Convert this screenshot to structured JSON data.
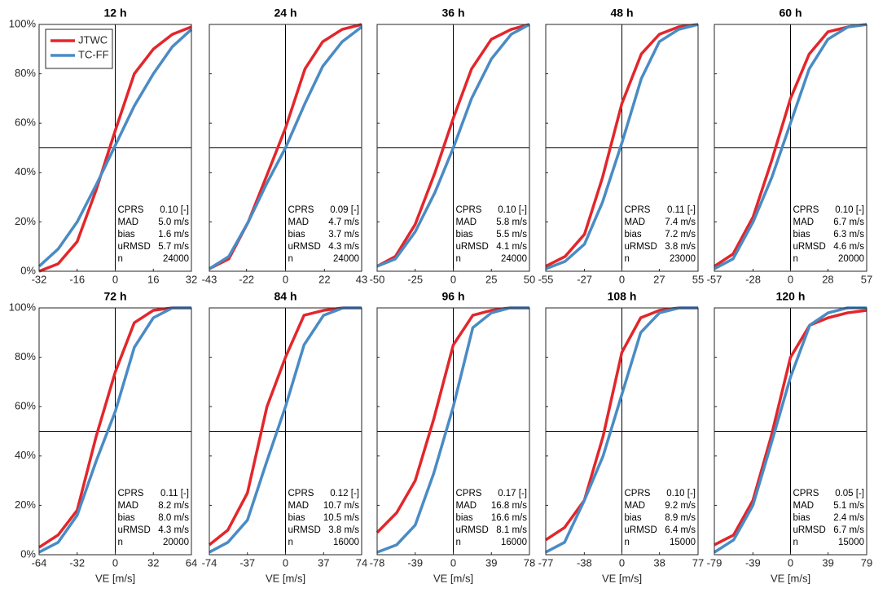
{
  "chart_data": [
    {
      "type": "line",
      "title": "12 h",
      "legend": "upper left",
      "x": [
        -32,
        -24,
        -16,
        -8,
        0,
        8,
        16,
        24,
        32
      ],
      "series": [
        {
          "name": "JTWC",
          "color": "#e3262b",
          "values": [
            0,
            3,
            12,
            33,
            57,
            80,
            90,
            96,
            99
          ]
        },
        {
          "name": "TC-FF",
          "color": "#4a8bc4",
          "values": [
            2,
            9,
            20,
            35,
            51,
            67,
            80,
            91,
            98
          ]
        }
      ],
      "xlim": [
        -32,
        32
      ],
      "xticks": [
        -32,
        -16,
        0,
        16,
        32
      ],
      "ylim": [
        0,
        100
      ],
      "yticks": [
        {
          "value": 0,
          "label": "0%"
        },
        {
          "value": 20,
          "label": "20%"
        },
        {
          "value": 40,
          "label": "40%"
        },
        {
          "value": 60,
          "label": "60%"
        },
        {
          "value": 80,
          "label": "80%"
        },
        {
          "value": 100,
          "label": "100%"
        }
      ],
      "ytick_labels": true,
      "reference_lines": {
        "x": 0,
        "y": 50
      },
      "stats": [
        {
          "label": "CPRS",
          "value": "0.10 [-]"
        },
        {
          "label": "MAD",
          "value": "5.0 m/s"
        },
        {
          "label": "bias",
          "value": "1.6 m/s"
        },
        {
          "label": "uRMSD",
          "value": "5.7 m/s"
        },
        {
          "label": "n",
          "value": "24000"
        }
      ]
    },
    {
      "type": "line",
      "title": "24 h",
      "x": [
        -43,
        -32,
        -21,
        -11,
        0,
        11,
        21,
        32,
        43
      ],
      "series": [
        {
          "color": "#e3262b",
          "values": [
            1,
            5,
            20,
            38,
            58,
            82,
            93,
            98,
            100
          ]
        },
        {
          "color": "#4a8bc4",
          "values": [
            1,
            6,
            20,
            35,
            50,
            68,
            83,
            93,
            99
          ]
        }
      ],
      "xlim": [
        -43,
        43
      ],
      "xticks": [
        -43,
        -22,
        0,
        22,
        43
      ],
      "ylim": [
        0,
        100
      ],
      "yticks": [
        0,
        20,
        40,
        60,
        80,
        100
      ],
      "ytick_labels": false,
      "reference_lines": {
        "x": 0,
        "y": 50
      },
      "stats": [
        {
          "label": "CPRS",
          "value": "0.09 [-]"
        },
        {
          "label": "MAD",
          "value": "4.7 m/s"
        },
        {
          "label": "bias",
          "value": "3.7 m/s"
        },
        {
          "label": "uRMSD",
          "value": "4.3 m/s"
        },
        {
          "label": "n",
          "value": "24000"
        }
      ]
    },
    {
      "type": "line",
      "title": "36 h",
      "x": [
        -50,
        -38,
        -25,
        -12,
        0,
        12,
        25,
        38,
        50
      ],
      "series": [
        {
          "color": "#e3262b",
          "values": [
            2,
            6,
            19,
            40,
            62,
            82,
            94,
            98,
            100
          ]
        },
        {
          "color": "#4a8bc4",
          "values": [
            2,
            5,
            16,
            32,
            50,
            70,
            86,
            96,
            100
          ]
        }
      ],
      "xlim": [
        -50,
        50
      ],
      "xticks": [
        -50,
        -25,
        0,
        25,
        50
      ],
      "ylim": [
        0,
        100
      ],
      "yticks": [
        0,
        20,
        40,
        60,
        80,
        100
      ],
      "ytick_labels": false,
      "reference_lines": {
        "x": 0,
        "y": 50
      },
      "stats": [
        {
          "label": "CPRS",
          "value": "0.10 [-]"
        },
        {
          "label": "MAD",
          "value": "5.8 m/s"
        },
        {
          "label": "bias",
          "value": "5.5 m/s"
        },
        {
          "label": "uRMSD",
          "value": "4.1 m/s"
        },
        {
          "label": "n",
          "value": "24000"
        }
      ]
    },
    {
      "type": "line",
      "title": "48 h",
      "x": [
        -55,
        -41,
        -27,
        -14,
        0,
        14,
        27,
        41,
        55
      ],
      "series": [
        {
          "color": "#e3262b",
          "values": [
            2,
            6,
            15,
            38,
            68,
            88,
            96,
            99,
            100
          ]
        },
        {
          "color": "#4a8bc4",
          "values": [
            1,
            4,
            11,
            28,
            52,
            78,
            93,
            98,
            100
          ]
        }
      ],
      "xlim": [
        -55,
        55
      ],
      "xticks": [
        -55,
        -27,
        0,
        27,
        55
      ],
      "ylim": [
        0,
        100
      ],
      "yticks": [
        0,
        20,
        40,
        60,
        80,
        100
      ],
      "ytick_labels": false,
      "reference_lines": {
        "x": 0,
        "y": 50
      },
      "stats": [
        {
          "label": "CPRS",
          "value": "0.11 [-]"
        },
        {
          "label": "MAD",
          "value": "7.4 m/s"
        },
        {
          "label": "bias",
          "value": "7.2 m/s"
        },
        {
          "label": "uRMSD",
          "value": "3.8 m/s"
        },
        {
          "label": "n",
          "value": "23000"
        }
      ]
    },
    {
      "type": "line",
      "title": "60 h",
      "x": [
        -57,
        -43,
        -28,
        -14,
        0,
        14,
        28,
        43,
        57
      ],
      "series": [
        {
          "color": "#e3262b",
          "values": [
            2,
            7,
            22,
            45,
            70,
            88,
            97,
            99,
            100
          ]
        },
        {
          "color": "#4a8bc4",
          "values": [
            1,
            5,
            20,
            38,
            60,
            82,
            94,
            99,
            100
          ]
        }
      ],
      "xlim": [
        -57,
        57
      ],
      "xticks": [
        -57,
        -28,
        0,
        28,
        57
      ],
      "ylim": [
        0,
        100
      ],
      "yticks": [
        0,
        20,
        40,
        60,
        80,
        100
      ],
      "ytick_labels": false,
      "reference_lines": {
        "x": 0,
        "y": 50
      },
      "stats": [
        {
          "label": "CPRS",
          "value": "0.10 [-]"
        },
        {
          "label": "MAD",
          "value": "6.7 m/s"
        },
        {
          "label": "bias",
          "value": "6.3 m/s"
        },
        {
          "label": "uRMSD",
          "value": "4.6 m/s"
        },
        {
          "label": "n",
          "value": "20000"
        }
      ]
    },
    {
      "type": "line",
      "title": "72 h",
      "xlabel": "VE [m/s]",
      "x": [
        -64,
        -48,
        -32,
        -16,
        0,
        16,
        32,
        48,
        64
      ],
      "series": [
        {
          "color": "#e3262b",
          "values": [
            3,
            8,
            18,
            48,
            74,
            94,
            99,
            100,
            100
          ]
        },
        {
          "color": "#4a8bc4",
          "values": [
            1,
            5,
            16,
            38,
            58,
            84,
            96,
            100,
            100
          ]
        }
      ],
      "xlim": [
        -64,
        64
      ],
      "xticks": [
        -64,
        -32,
        0,
        32,
        64
      ],
      "ylim": [
        0,
        100
      ],
      "yticks": [
        {
          "value": 0,
          "label": "0%"
        },
        {
          "value": 20,
          "label": "20%"
        },
        {
          "value": 40,
          "label": "40%"
        },
        {
          "value": 60,
          "label": "60%"
        },
        {
          "value": 80,
          "label": "80%"
        },
        {
          "value": 100,
          "label": "100%"
        }
      ],
      "ytick_labels": true,
      "reference_lines": {
        "x": 0,
        "y": 50
      },
      "stats": [
        {
          "label": "CPRS",
          "value": "0.11 [-]"
        },
        {
          "label": "MAD",
          "value": "8.2 m/s"
        },
        {
          "label": "bias",
          "value": "8.0 m/s"
        },
        {
          "label": "uRMSD",
          "value": "4.3 m/s"
        },
        {
          "label": "n",
          "value": "20000"
        }
      ]
    },
    {
      "type": "line",
      "title": "84 h",
      "xlabel": "VE [m/s]",
      "x": [
        -74,
        -56,
        -37,
        -18,
        0,
        18,
        37,
        56,
        74
      ],
      "series": [
        {
          "color": "#e3262b",
          "values": [
            4,
            10,
            25,
            60,
            80,
            97,
            99,
            100,
            100
          ]
        },
        {
          "color": "#4a8bc4",
          "values": [
            1,
            5,
            14,
            38,
            60,
            85,
            97,
            100,
            100
          ]
        }
      ],
      "xlim": [
        -74,
        74
      ],
      "xticks": [
        -74,
        -37,
        0,
        37,
        74
      ],
      "ylim": [
        0,
        100
      ],
      "yticks": [
        0,
        20,
        40,
        60,
        80,
        100
      ],
      "ytick_labels": false,
      "reference_lines": {
        "x": 0,
        "y": 50
      },
      "stats": [
        {
          "label": "CPRS",
          "value": "0.12 [-]"
        },
        {
          "label": "MAD",
          "value": "10.7 m/s"
        },
        {
          "label": "bias",
          "value": "10.5 m/s"
        },
        {
          "label": "uRMSD",
          "value": "3.8 m/s"
        },
        {
          "label": "n",
          "value": "16000"
        }
      ]
    },
    {
      "type": "line",
      "title": "96 h",
      "xlabel": "VE [m/s]",
      "x": [
        -78,
        -58,
        -39,
        -20,
        0,
        20,
        39,
        58,
        78
      ],
      "series": [
        {
          "color": "#e3262b",
          "values": [
            9,
            17,
            30,
            55,
            85,
            97,
            99,
            100,
            100
          ]
        },
        {
          "color": "#4a8bc4",
          "values": [
            1,
            4,
            12,
            33,
            60,
            92,
            98,
            100,
            100
          ]
        }
      ],
      "xlim": [
        -78,
        78
      ],
      "xticks": [
        -78,
        -39,
        0,
        39,
        78
      ],
      "ylim": [
        0,
        100
      ],
      "yticks": [
        0,
        20,
        40,
        60,
        80,
        100
      ],
      "ytick_labels": false,
      "reference_lines": {
        "x": 0,
        "y": 50
      },
      "stats": [
        {
          "label": "CPRS",
          "value": "0.17 [-]"
        },
        {
          "label": "MAD",
          "value": "16.8 m/s"
        },
        {
          "label": "bias",
          "value": "16.6 m/s"
        },
        {
          "label": "uRMSD",
          "value": "8.1 m/s"
        },
        {
          "label": "n",
          "value": "16000"
        }
      ]
    },
    {
      "type": "line",
      "title": "108 h",
      "xlabel": "VE [m/s]",
      "x": [
        -77,
        -58,
        -38,
        -19,
        0,
        19,
        38,
        58,
        77
      ],
      "series": [
        {
          "color": "#e3262b",
          "values": [
            6,
            11,
            22,
            48,
            82,
            96,
            99,
            100,
            100
          ]
        },
        {
          "color": "#4a8bc4",
          "values": [
            1,
            5,
            22,
            40,
            65,
            90,
            98,
            100,
            100
          ]
        }
      ],
      "xlim": [
        -77,
        77
      ],
      "xticks": [
        -77,
        -38,
        0,
        38,
        77
      ],
      "ylim": [
        0,
        100
      ],
      "yticks": [
        0,
        20,
        40,
        60,
        80,
        100
      ],
      "ytick_labels": false,
      "reference_lines": {
        "x": 0,
        "y": 50
      },
      "stats": [
        {
          "label": "CPRS",
          "value": "0.10 [-]"
        },
        {
          "label": "MAD",
          "value": "9.2 m/s"
        },
        {
          "label": "bias",
          "value": "8.9 m/s"
        },
        {
          "label": "uRMSD",
          "value": "6.4 m/s"
        },
        {
          "label": "n",
          "value": "15000"
        }
      ]
    },
    {
      "type": "line",
      "title": "120 h",
      "xlabel": "VE [m/s]",
      "x": [
        -79,
        -59,
        -39,
        -20,
        0,
        20,
        39,
        59,
        79
      ],
      "series": [
        {
          "color": "#e3262b",
          "values": [
            4,
            8,
            22,
            48,
            80,
            93,
            96,
            98,
            99
          ]
        },
        {
          "color": "#4a8bc4",
          "values": [
            1,
            6,
            20,
            45,
            72,
            93,
            98,
            100,
            100
          ]
        }
      ],
      "xlim": [
        -79,
        79
      ],
      "xticks": [
        -79,
        -39,
        0,
        39,
        79
      ],
      "ylim": [
        0,
        100
      ],
      "yticks": [
        0,
        20,
        40,
        60,
        80,
        100
      ],
      "ytick_labels": false,
      "reference_lines": {
        "x": 0,
        "y": 50
      },
      "stats": [
        {
          "label": "CPRS",
          "value": "0.05 [-]"
        },
        {
          "label": "MAD",
          "value": "5.1 m/s"
        },
        {
          "label": "bias",
          "value": "2.4 m/s"
        },
        {
          "label": "uRMSD",
          "value": "6.7 m/s"
        },
        {
          "label": "n",
          "value": "15000"
        }
      ]
    }
  ]
}
